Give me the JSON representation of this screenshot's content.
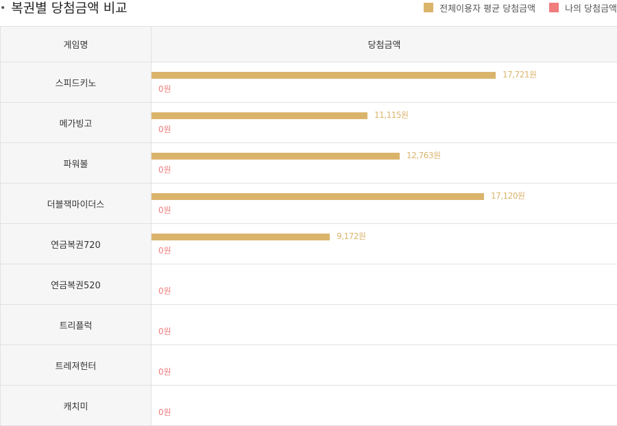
{
  "header": {
    "title": "복권별 당첨금액 비교"
  },
  "legend": [
    {
      "label": "전체이용자 평균 당첨금액",
      "color": "#dbb46c"
    },
    {
      "label": "나의 당첨금액",
      "color": "#f07c7c"
    }
  ],
  "table": {
    "col_game": "게임명",
    "col_amount": "당첨금액"
  },
  "chart_data": {
    "type": "bar",
    "orientation": "horizontal",
    "title": "복권별 당첨금액 비교",
    "categories": [
      "스피드키노",
      "메가빙고",
      "파워볼",
      "더블잭마이더스",
      "연금복권720",
      "연금복권520",
      "트리플럭",
      "트레져헌터",
      "캐치미"
    ],
    "series": [
      {
        "name": "전체이용자 평균 당첨금액",
        "color": "#dbb46c",
        "values": [
          17721,
          11115,
          12763,
          17120,
          9172,
          null,
          null,
          null,
          null
        ],
        "labels": [
          "17,721원",
          "11,115원",
          "12,763원",
          "17,120원",
          "9,172원",
          "",
          "",
          "",
          ""
        ]
      },
      {
        "name": "나의 당첨금액",
        "color": "#f07c7c",
        "values": [
          0,
          0,
          0,
          0,
          0,
          0,
          0,
          0,
          0
        ],
        "labels": [
          "0원",
          "0원",
          "0원",
          "0원",
          "0원",
          "0원",
          "0원",
          "0원",
          "0원"
        ]
      }
    ],
    "xlim": [
      0,
      24000
    ]
  }
}
